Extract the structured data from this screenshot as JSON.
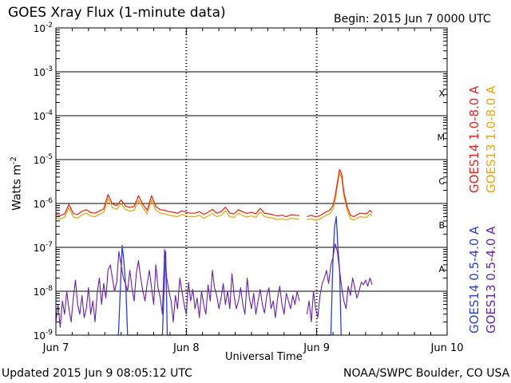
{
  "header": {
    "title": "GOES Xray Flux (1-minute data)",
    "begin": "Begin:  2015 Jun 7 0000 UTC"
  },
  "footer": {
    "updated": "Updated 2015 Jun  9 08:05:12 UTC",
    "credit": "NOAA/SWPC Boulder, CO USA"
  },
  "colors": {
    "goes14_long": "#e8201c",
    "goes13_long": "#f0a400",
    "goes14_short": "#2b3fd6",
    "goes13_short": "#6a1fb0"
  },
  "chart_data": {
    "type": "line",
    "title": "GOES Xray Flux (1-minute data)",
    "xlabel": "Universal Time",
    "ylabel": "Watts m",
    "ylabel_superscript": "-2",
    "yscale": "log",
    "ylim": [
      1e-09,
      0.01
    ],
    "xlim": [
      0,
      72
    ],
    "grid": true,
    "y_ticks": [
      {
        "value": 1e-09,
        "mantissa": "10",
        "exp": "-9"
      },
      {
        "value": 1e-08,
        "mantissa": "10",
        "exp": "-8"
      },
      {
        "value": 1e-07,
        "mantissa": "10",
        "exp": "-7"
      },
      {
        "value": 1e-06,
        "mantissa": "10",
        "exp": "-6"
      },
      {
        "value": 1e-05,
        "mantissa": "10",
        "exp": "-5"
      },
      {
        "value": 0.0001,
        "mantissa": "10",
        "exp": "-4"
      },
      {
        "value": 0.001,
        "mantissa": "10",
        "exp": "-3"
      },
      {
        "value": 0.01,
        "mantissa": "10",
        "exp": "-2"
      }
    ],
    "x_ticks": [
      {
        "hours": 0,
        "label": "Jun 7"
      },
      {
        "hours": 24,
        "label": "Jun 8"
      },
      {
        "hours": 48,
        "label": "Jun 9"
      },
      {
        "hours": 72,
        "label": "Jun 10"
      }
    ],
    "flare_classes": [
      {
        "label": "A",
        "value": 3.2e-08
      },
      {
        "label": "B",
        "value": 3.2e-07
      },
      {
        "label": "C",
        "value": 3.2e-06
      },
      {
        "label": "M",
        "value": 3.2e-05
      },
      {
        "label": "X",
        "value": 0.00032
      }
    ],
    "legend_placement": "right",
    "series": [
      {
        "name": "GOES13 1.0-8.0 A",
        "color": "#f0a400",
        "width": 1.2,
        "x": [
          0,
          0.8,
          1.6,
          2.4,
          3.2,
          4.0,
          4.8,
          5.6,
          6.4,
          7.2,
          8.0,
          8.8,
          9.6,
          10.4,
          11.2,
          12.0,
          12.8,
          13.6,
          14.4,
          15.2,
          16.0,
          16.8,
          17.6,
          18.4,
          19.2,
          20.0,
          20.8,
          21.6,
          22.4,
          23.2,
          24.0,
          24.8,
          25.6,
          26.4,
          27.2,
          28.0,
          28.8,
          29.6,
          30.4,
          31.2,
          32.0,
          32.8,
          33.6,
          34.4,
          35.2,
          36.0,
          36.8,
          37.6,
          38.4,
          39.2,
          40.0,
          40.8,
          41.6,
          42.4,
          43.2,
          44.0,
          44.8
        ],
        "y": [
          4.6e-07,
          4.4e-07,
          4.8e-07,
          8e-07,
          4.9e-07,
          4.6e-07,
          5.5e-07,
          6e-07,
          5.2e-07,
          5e-07,
          5.6e-07,
          6.3e-07,
          1.3e-06,
          8e-07,
          7.3e-07,
          1e-06,
          7.2e-07,
          6.7e-07,
          7e-07,
          1.2e-06,
          8e-07,
          5.8e-07,
          1.2e-06,
          7e-07,
          6e-07,
          5.8e-07,
          5.4e-07,
          5.2e-07,
          5e-07,
          5.6e-07,
          5.2e-07,
          5e-07,
          5e-07,
          5.4e-07,
          4.6e-07,
          5.2e-07,
          6e-07,
          5e-07,
          5.4e-07,
          6.8e-07,
          5e-07,
          4.8e-07,
          6e-07,
          5.3e-07,
          4.9e-07,
          5.2e-07,
          4.8e-07,
          6.4e-07,
          5e-07,
          4.8e-07,
          4.6e-07,
          4.3e-07,
          4.5e-07,
          4.2e-07,
          4.6e-07,
          4.5e-07,
          4.4e-07
        ]
      },
      {
        "name": "GOES13 1.0-8.0 A",
        "color": "#f0a400",
        "width": 1.2,
        "x": [
          46.2,
          47.0,
          47.8,
          48.6,
          49.2,
          49.8,
          50.4,
          51.0,
          51.4,
          51.8,
          52.2,
          52.6,
          53.0,
          53.6,
          54.2,
          54.8,
          55.4,
          56.0,
          56.6,
          57.2,
          57.8,
          58.2
        ],
        "y": [
          4.2e-07,
          4.5e-07,
          4.1e-07,
          4.4e-07,
          4.9e-07,
          5.4e-07,
          5.8e-07,
          7.5e-07,
          1.2e-06,
          2.5e-06,
          5e-06,
          3.8e-06,
          1.5e-06,
          7e-07,
          4.5e-07,
          4.2e-07,
          4.6e-07,
          5e-07,
          4.9e-07,
          4.8e-07,
          5.8e-07,
          5.2e-07
        ]
      },
      {
        "name": "GOES14 1.0-8.0 A",
        "color": "#e8201c",
        "width": 1.2,
        "x": [
          0,
          0.8,
          1.6,
          2.4,
          3.2,
          4.0,
          4.8,
          5.6,
          6.4,
          7.2,
          8.0,
          8.8,
          9.6,
          10.4,
          11.2,
          12.0,
          12.8,
          13.6,
          14.4,
          15.2,
          16.0,
          16.8,
          17.6,
          18.4,
          19.2,
          20.0,
          20.8,
          21.6,
          22.4,
          23.2,
          24.0,
          24.8,
          25.6,
          26.4,
          27.2,
          28.0,
          28.8,
          29.6,
          30.4,
          31.2,
          32.0,
          32.8,
          33.6,
          34.4,
          35.2,
          36.0,
          36.8,
          37.6,
          38.4,
          39.2,
          40.0,
          40.8,
          41.6,
          42.4,
          43.2,
          44.0,
          44.8
        ],
        "y": [
          5.6e-07,
          5.3e-07,
          5.8e-07,
          9.5e-07,
          5.9e-07,
          5.6e-07,
          6.6e-07,
          7.2e-07,
          6.2e-07,
          6e-07,
          6.7e-07,
          7.6e-07,
          1.6e-06,
          9.8e-07,
          8.9e-07,
          1.2e-06,
          8.7e-07,
          8.1e-07,
          8.5e-07,
          1.5e-06,
          9.6e-07,
          7e-07,
          1.5e-06,
          8.5e-07,
          7.2e-07,
          7e-07,
          6.5e-07,
          6.3e-07,
          6e-07,
          6.8e-07,
          6.3e-07,
          6e-07,
          6e-07,
          6.5e-07,
          5.6e-07,
          6.3e-07,
          7.3e-07,
          6e-07,
          6.5e-07,
          8.2e-07,
          6e-07,
          5.8e-07,
          7.2e-07,
          6.4e-07,
          5.9e-07,
          6.3e-07,
          5.8e-07,
          7.7e-07,
          6e-07,
          5.8e-07,
          5.5e-07,
          5.2e-07,
          5.4e-07,
          5e-07,
          5.5e-07,
          5.4e-07,
          5.3e-07
        ]
      },
      {
        "name": "GOES14 1.0-8.0 A",
        "color": "#e8201c",
        "width": 1.2,
        "x": [
          46.2,
          47.0,
          47.8,
          48.6,
          49.2,
          49.8,
          50.4,
          51.0,
          51.4,
          51.8,
          52.2,
          52.6,
          53.0,
          53.6,
          54.2,
          54.8,
          55.4,
          56.0,
          56.6,
          57.2,
          57.8,
          58.2
        ],
        "y": [
          5e-07,
          5.4e-07,
          4.9e-07,
          5.3e-07,
          5.9e-07,
          6.5e-07,
          7e-07,
          9e-07,
          1.5e-06,
          3e-06,
          6e-06,
          4.6e-06,
          1.8e-06,
          8.4e-07,
          5.4e-07,
          5e-07,
          5.5e-07,
          6e-07,
          5.9e-07,
          5.8e-07,
          7e-07,
          6.2e-07
        ]
      },
      {
        "name": "GOES14 0.5-4.0 A",
        "color": "#2b3fd6",
        "width": 1.3,
        "x": [
          11.5,
          11.9,
          12.2,
          12.5,
          12.9,
          13.2,
          19.6,
          19.9,
          20.2,
          20.5,
          50.6,
          51.0,
          51.3,
          51.6,
          51.9,
          52.2,
          52.5
        ],
        "y": [
          1e-09,
          1.5e-08,
          1.1e-07,
          5e-08,
          1e-08,
          1e-09,
          1e-09,
          1e-08,
          8e-08,
          1e-09,
          1e-09,
          6e-08,
          3e-07,
          5e-07,
          1e-07,
          3e-08,
          1e-09
        ]
      },
      {
        "name": "GOES13 0.5-4.0 A",
        "color": "#6a1fb0",
        "width": 1.1,
        "x": [
          0.0,
          0.4,
          0.8,
          1.2,
          1.6,
          2.0,
          2.4,
          2.8,
          3.2,
          3.6,
          4.0,
          4.4,
          4.8,
          5.2,
          5.6,
          6.0,
          6.4,
          6.8,
          7.2,
          7.6,
          8.0,
          8.4,
          8.8,
          9.2,
          9.6,
          10.0,
          10.4,
          10.8,
          11.2,
          11.6,
          12.0,
          12.4,
          12.8,
          13.2,
          13.6,
          14.0,
          14.4,
          14.8,
          15.2,
          15.6,
          16.0,
          16.4,
          16.8,
          17.2,
          17.6,
          18.0,
          18.4,
          18.8,
          19.2,
          19.6,
          20.0,
          20.4,
          20.8,
          21.2,
          21.6,
          22.0,
          22.4,
          22.8,
          23.2,
          23.6,
          24.0,
          24.4,
          24.8,
          25.2,
          25.6,
          26.0,
          26.4,
          26.8,
          27.2,
          27.6,
          28.0,
          28.4,
          28.8,
          29.2,
          29.6,
          30.0,
          30.4,
          30.8,
          31.2,
          31.6,
          32.0,
          32.4,
          32.8,
          33.2,
          33.6,
          34.0,
          34.4,
          34.8,
          35.2,
          35.6,
          36.0,
          36.4,
          36.8,
          37.2,
          37.6,
          38.0,
          38.4,
          38.8,
          39.2,
          39.6,
          40.0,
          40.4,
          40.8,
          41.2,
          41.6,
          42.0,
          42.4,
          42.8,
          43.2,
          43.6,
          44.0,
          44.4,
          44.8
        ],
        "y": [
          2e-09,
          5e-09,
          1.5e-09,
          6e-09,
          3e-09,
          1e-08,
          4e-09,
          2e-09,
          7e-09,
          1.8e-08,
          5e-09,
          3e-09,
          8e-09,
          2.5e-09,
          4e-09,
          1.2e-08,
          3e-09,
          6e-09,
          2e-09,
          9e-09,
          2e-08,
          5e-09,
          1.5e-08,
          7e-09,
          3e-08,
          4e-08,
          2e-08,
          1e-08,
          1.6e-08,
          8e-08,
          4e-08,
          2e-08,
          1.5e-08,
          1e-08,
          3e-08,
          1.2e-08,
          6e-09,
          2.5e-08,
          5e-08,
          2e-08,
          1e-08,
          6e-09,
          1.5e-08,
          3e-08,
          1.2e-08,
          5e-09,
          4e-08,
          1.2e-08,
          7e-09,
          3e-09,
          9e-08,
          2e-08,
          1e-08,
          6e-09,
          2e-09,
          8e-09,
          4e-09,
          2e-08,
          1e-08,
          5e-09,
          3e-09,
          1.6e-08,
          6e-09,
          1.1e-08,
          4e-09,
          7e-09,
          2.5e-09,
          1e-08,
          5e-09,
          3e-09,
          1.4e-08,
          6e-09,
          3e-08,
          1.2e-08,
          8e-09,
          4e-09,
          7e-09,
          1.5e-08,
          5e-09,
          1e-08,
          4e-09,
          2.5e-08,
          8e-09,
          4e-09,
          6e-09,
          1.2e-08,
          5e-09,
          3e-09,
          2e-08,
          7e-09,
          4e-09,
          9e-09,
          3e-09,
          6e-09,
          1.1e-08,
          5e-09,
          3.2e-09,
          8e-09,
          1.2e-08,
          4e-09,
          6e-09,
          2.5e-09,
          7e-09,
          1.3e-08,
          5e-09,
          3e-09,
          9e-09,
          6e-09,
          4e-09,
          8e-09,
          5e-09,
          1e-08,
          6e-09
        ]
      },
      {
        "name": "GOES13 0.5-4.0 A",
        "color": "#6a1fb0",
        "width": 1.1,
        "x": [
          46.2,
          46.6,
          47.0,
          47.4,
          47.8,
          48.2,
          48.6,
          49.0,
          49.4,
          49.8,
          50.2,
          50.6,
          51.0,
          51.4,
          51.8,
          52.2,
          52.6,
          53.0,
          53.4,
          53.8,
          54.2,
          54.6,
          55.0,
          55.4,
          55.8,
          56.2,
          56.6,
          57.0,
          57.4,
          57.8,
          58.2
        ],
        "y": [
          3e-09,
          6e-09,
          2e-09,
          1e-08,
          4e-09,
          2.5e-09,
          8e-09,
          1.5e-08,
          2e-08,
          3e-08,
          1.5e-08,
          4e-08,
          6e-08,
          1.2e-07,
          8e-08,
          3e-08,
          1.2e-08,
          6e-09,
          4e-09,
          1.3e-08,
          8e-09,
          2e-08,
          1.2e-08,
          7e-09,
          1e-08,
          1.6e-08,
          1.4e-08,
          1.8e-08,
          1.3e-08,
          2e-08,
          1.4e-08
        ]
      }
    ],
    "legend": [
      {
        "label": "GOES14 1.0-8.0 A",
        "color": "#e8201c"
      },
      {
        "label": "GOES13 1.0-8.0 A",
        "color": "#f0a400"
      },
      {
        "label": "GOES14 0.5-4.0 A",
        "color": "#2b3fd6"
      },
      {
        "label": "GOES13 0.5-4.0 A",
        "color": "#6a1fb0"
      }
    ]
  }
}
